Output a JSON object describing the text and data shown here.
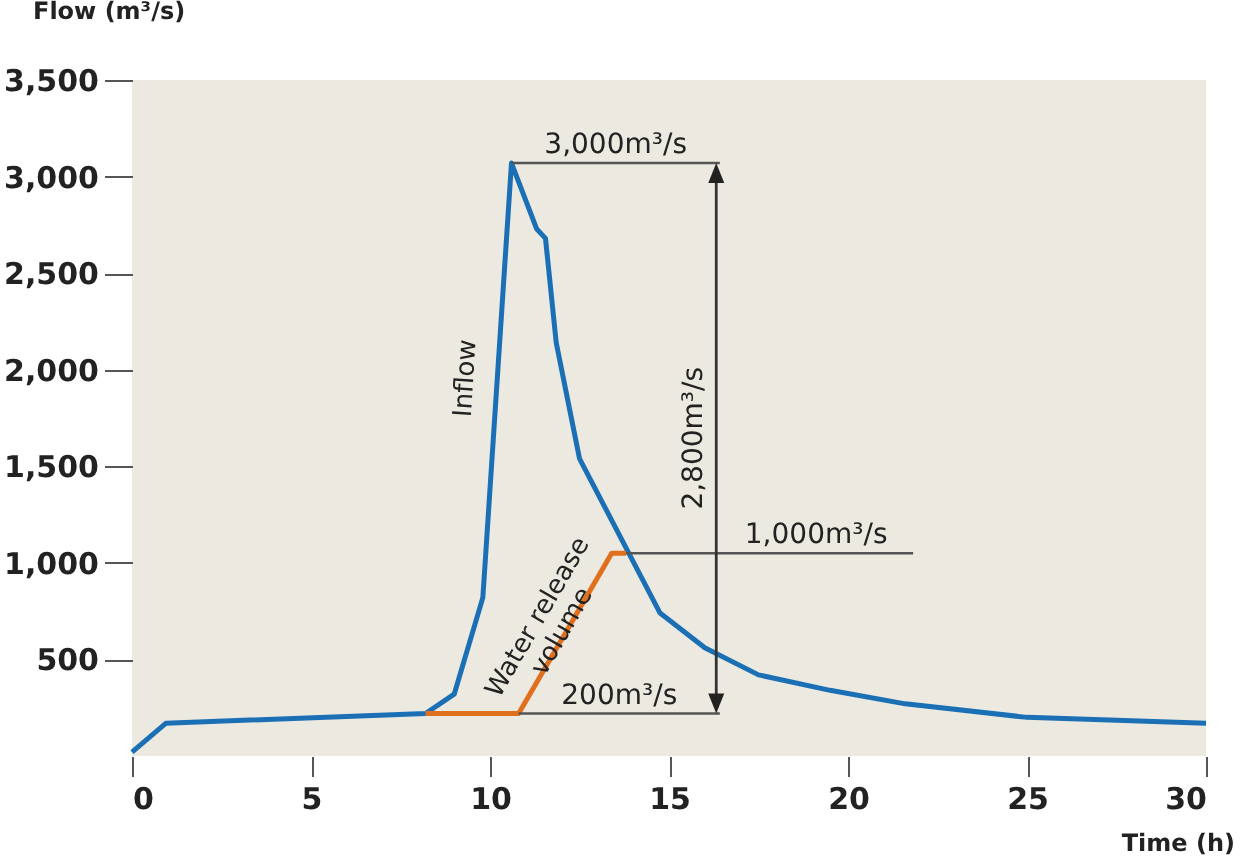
{
  "chart_data": {
    "type": "line",
    "xlabel": "Time (h)",
    "ylabel": "Flow (m³/s)",
    "xlim": [
      0,
      30
    ],
    "xticks": [
      0,
      5,
      10,
      15,
      20,
      25,
      30
    ],
    "ylim": [
      0,
      3500
    ],
    "yticks": [
      500,
      {
        "value": 1000,
        "label": "1,000"
      },
      {
        "value": 1500,
        "label": "1,500"
      },
      {
        "value": 2000,
        "label": "2,000"
      },
      {
        "value": 2500,
        "label": "2,500"
      },
      {
        "value": 3000,
        "label": "3,000"
      },
      {
        "value": 3500,
        "label": "3,500"
      }
    ],
    "grid": false,
    "legend": false,
    "marker": "none",
    "line_style": "solid",
    "series": [
      {
        "name": "Inflow",
        "color": "#1a6fb5",
        "x": [
          0,
          0.95,
          8.2,
          9.0,
          9.8,
          10.6,
          11.3,
          11.55,
          11.85,
          12.5,
          14.75,
          16.0,
          17.5,
          19.5,
          21.6,
          25,
          30
        ],
        "values": [
          20,
          170,
          220,
          320,
          820,
          3070,
          2730,
          2680,
          2140,
          1540,
          740,
          560,
          420,
          340,
          270,
          200,
          170
        ]
      },
      {
        "name": "Water release volume",
        "color": "#e0701e",
        "x": [
          8.2,
          10.8,
          13.4,
          13.8
        ],
        "values": [
          220,
          220,
          1050,
          1050
        ]
      }
    ],
    "annotations": [
      {
        "text": "3,000m³/s",
        "x": 10.6,
        "y": 3070
      },
      {
        "text": "1,000m³/s",
        "x": 13.8,
        "y": 1050
      },
      {
        "text": "200m³/s",
        "x": 10.8,
        "y": 220
      },
      "2,800m³/s"
    ]
  }
}
